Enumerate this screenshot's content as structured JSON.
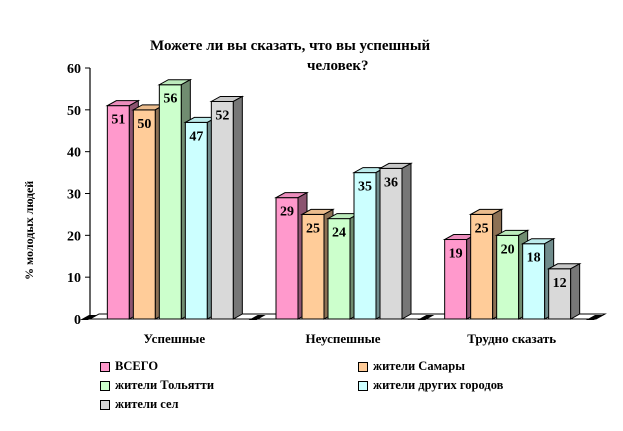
{
  "chart_data": {
    "type": "bar",
    "title_line1": "Можете ли вы сказать, что вы успешный",
    "title_line2": "человек?",
    "ylabel": "% молодых людей",
    "xlabel": "",
    "ylim": [
      0,
      60
    ],
    "yticks": [
      "0",
      "10",
      "20",
      "30",
      "40",
      "50",
      "60"
    ],
    "grid": false,
    "bar_3d": true,
    "legend_position": "bottom",
    "categories": [
      "Успешные",
      "Неуспешные",
      "Трудно сказать"
    ],
    "series": [
      {
        "name": "ВСЕГО",
        "color": "#FF99CC",
        "values": [
          51,
          29,
          19
        ]
      },
      {
        "name": "жители Самары",
        "color": "#FFCC99",
        "values": [
          50,
          25,
          25
        ]
      },
      {
        "name": "жители Тольятти",
        "color": "#CCFFCC",
        "values": [
          56,
          24,
          20
        ]
      },
      {
        "name": "жители других городов",
        "color": "#CCFFFF",
        "values": [
          47,
          35,
          18
        ]
      },
      {
        "name": "жители сел",
        "color": "#D9D9D9",
        "values": [
          52,
          36,
          12
        ]
      }
    ]
  }
}
